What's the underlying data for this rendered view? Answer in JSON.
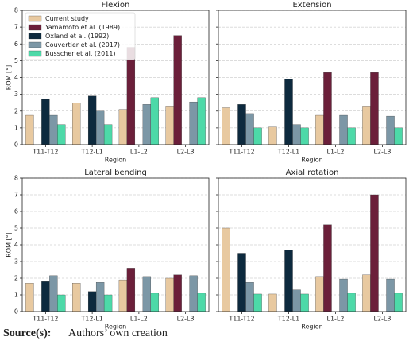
{
  "chart_data": [
    {
      "type": "bar",
      "title": "Flexion",
      "xlabel": "Region",
      "ylabel": "ROM [°]",
      "categories": [
        "T11-T12",
        "T12-L1",
        "L1-L2",
        "L2-L3"
      ],
      "series": [
        {
          "name": "Current study",
          "color": "#e8c9a0",
          "values": [
            1.75,
            2.5,
            2.1,
            2.3
          ]
        },
        {
          "name": "Yamamoto et al. (1989)",
          "color": "#6b1f3a",
          "values": [
            null,
            null,
            5.8,
            6.5
          ]
        },
        {
          "name": "Oxland et al. (1992)",
          "color": "#0d2a3e",
          "values": [
            2.7,
            2.9,
            null,
            null
          ]
        },
        {
          "name": "Couvertier  et al. (2017)",
          "color": "#7c97a6",
          "values": [
            1.75,
            2.0,
            2.4,
            2.55
          ]
        },
        {
          "name": "Busscher  et al. (2011)",
          "color": "#4dd9a8",
          "values": [
            1.2,
            1.2,
            2.8,
            2.8
          ]
        }
      ],
      "ylim": [
        0,
        8
      ],
      "yticks": [
        0,
        1,
        2,
        3,
        4,
        5,
        6,
        7,
        8
      ],
      "grid": true,
      "legend": "upper left"
    },
    {
      "type": "bar",
      "title": "Extension",
      "xlabel": "Region",
      "categories": [
        "T11-T12",
        "T12-L1",
        "L1-L2",
        "L2-L3"
      ],
      "series": [
        {
          "values": [
            2.2,
            1.05,
            1.75,
            2.3
          ]
        },
        {
          "values": [
            null,
            null,
            4.3,
            4.3
          ]
        },
        {
          "values": [
            2.4,
            3.9,
            null,
            null
          ]
        },
        {
          "values": [
            1.85,
            1.2,
            1.75,
            1.7
          ]
        },
        {
          "values": [
            1.0,
            1.0,
            1.0,
            1.0
          ]
        }
      ],
      "ylim": [
        0,
        8
      ],
      "yticks": [
        0,
        1,
        2,
        3,
        4,
        5,
        6,
        7,
        8
      ],
      "grid": true
    },
    {
      "type": "bar",
      "title": "Lateral bending",
      "xlabel": "Region",
      "ylabel": "ROM [°]",
      "categories": [
        "T11-T12",
        "T12-L1",
        "L1-L2",
        "L2-L3"
      ],
      "series": [
        {
          "values": [
            1.7,
            1.7,
            1.9,
            2.0
          ]
        },
        {
          "values": [
            null,
            null,
            2.6,
            2.2
          ]
        },
        {
          "values": [
            1.8,
            1.2,
            null,
            null
          ]
        },
        {
          "values": [
            2.15,
            1.75,
            2.1,
            2.15
          ]
        },
        {
          "values": [
            1.0,
            1.0,
            1.1,
            1.1
          ]
        }
      ],
      "ylim": [
        0,
        8
      ],
      "yticks": [
        0,
        1,
        2,
        3,
        4,
        5,
        6,
        7,
        8
      ],
      "grid": true
    },
    {
      "type": "bar",
      "title": "Axial rotation",
      "xlabel": "Region",
      "categories": [
        "T11-T12",
        "T12-L1",
        "L1-L2",
        "L2-L3"
      ],
      "series": [
        {
          "values": [
            5.0,
            1.05,
            2.1,
            2.2
          ]
        },
        {
          "values": [
            null,
            null,
            5.2,
            7.0
          ]
        },
        {
          "values": [
            3.5,
            3.7,
            null,
            null
          ]
        },
        {
          "values": [
            1.75,
            1.3,
            1.95,
            1.95
          ]
        },
        {
          "values": [
            1.05,
            1.05,
            1.1,
            1.1
          ]
        }
      ],
      "ylim": [
        0,
        8
      ],
      "yticks": [
        0,
        1,
        2,
        3,
        4,
        5,
        6,
        7,
        8
      ],
      "grid": true
    }
  ],
  "source": {
    "label": "Source(s):",
    "text": "Authors’ own creation"
  }
}
